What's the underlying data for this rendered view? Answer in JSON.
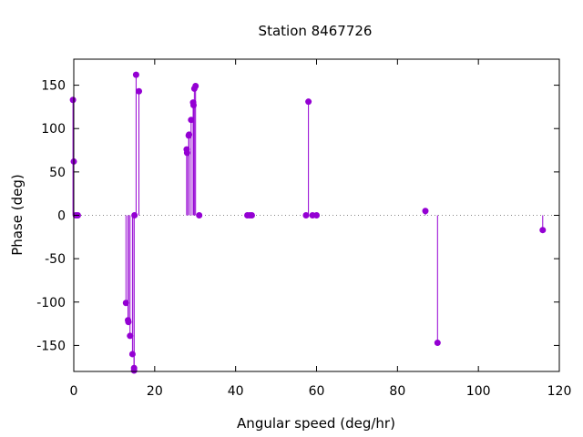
{
  "chart_data": {
    "type": "scatter",
    "style": "impulses-with-points",
    "title": "Station 8467726",
    "xlabel": "Angular speed (deg/hr)",
    "ylabel": "Phase (deg)",
    "xlim": [
      0,
      120
    ],
    "ylim": [
      -180,
      180
    ],
    "xticks": [
      0,
      20,
      40,
      60,
      80,
      100,
      120
    ],
    "yticks": [
      -150,
      -100,
      -50,
      0,
      50,
      100,
      150
    ],
    "zero_line": true,
    "grid": false,
    "legend": "none",
    "color": "#9400d3",
    "points": [
      {
        "x": -0.2,
        "y": 133
      },
      {
        "x": 0.0,
        "y": 62
      },
      {
        "x": 0.5,
        "y": 0
      },
      {
        "x": 1.0,
        "y": 0
      },
      {
        "x": 12.9,
        "y": -101
      },
      {
        "x": 13.4,
        "y": -121
      },
      {
        "x": 13.5,
        "y": -123
      },
      {
        "x": 13.9,
        "y": -139
      },
      {
        "x": 14.5,
        "y": -160
      },
      {
        "x": 14.9,
        "y": -176
      },
      {
        "x": 14.9,
        "y": -179
      },
      {
        "x": 15.0,
        "y": 0
      },
      {
        "x": 15.4,
        "y": 162
      },
      {
        "x": 16.1,
        "y": 143
      },
      {
        "x": 27.9,
        "y": 76
      },
      {
        "x": 28.0,
        "y": 72
      },
      {
        "x": 28.4,
        "y": 92
      },
      {
        "x": 28.5,
        "y": 93
      },
      {
        "x": 29.0,
        "y": 110
      },
      {
        "x": 29.5,
        "y": 130
      },
      {
        "x": 29.6,
        "y": 127
      },
      {
        "x": 29.8,
        "y": 146
      },
      {
        "x": 30.1,
        "y": 149
      },
      {
        "x": 31.0,
        "y": 0
      },
      {
        "x": 42.9,
        "y": 0
      },
      {
        "x": 43.5,
        "y": 0
      },
      {
        "x": 44.0,
        "y": 0
      },
      {
        "x": 57.4,
        "y": 0
      },
      {
        "x": 58.0,
        "y": 131
      },
      {
        "x": 59.0,
        "y": 0
      },
      {
        "x": 60.0,
        "y": 0
      },
      {
        "x": 86.9,
        "y": 5
      },
      {
        "x": 89.9,
        "y": -147
      },
      {
        "x": 115.9,
        "y": -17
      }
    ]
  }
}
